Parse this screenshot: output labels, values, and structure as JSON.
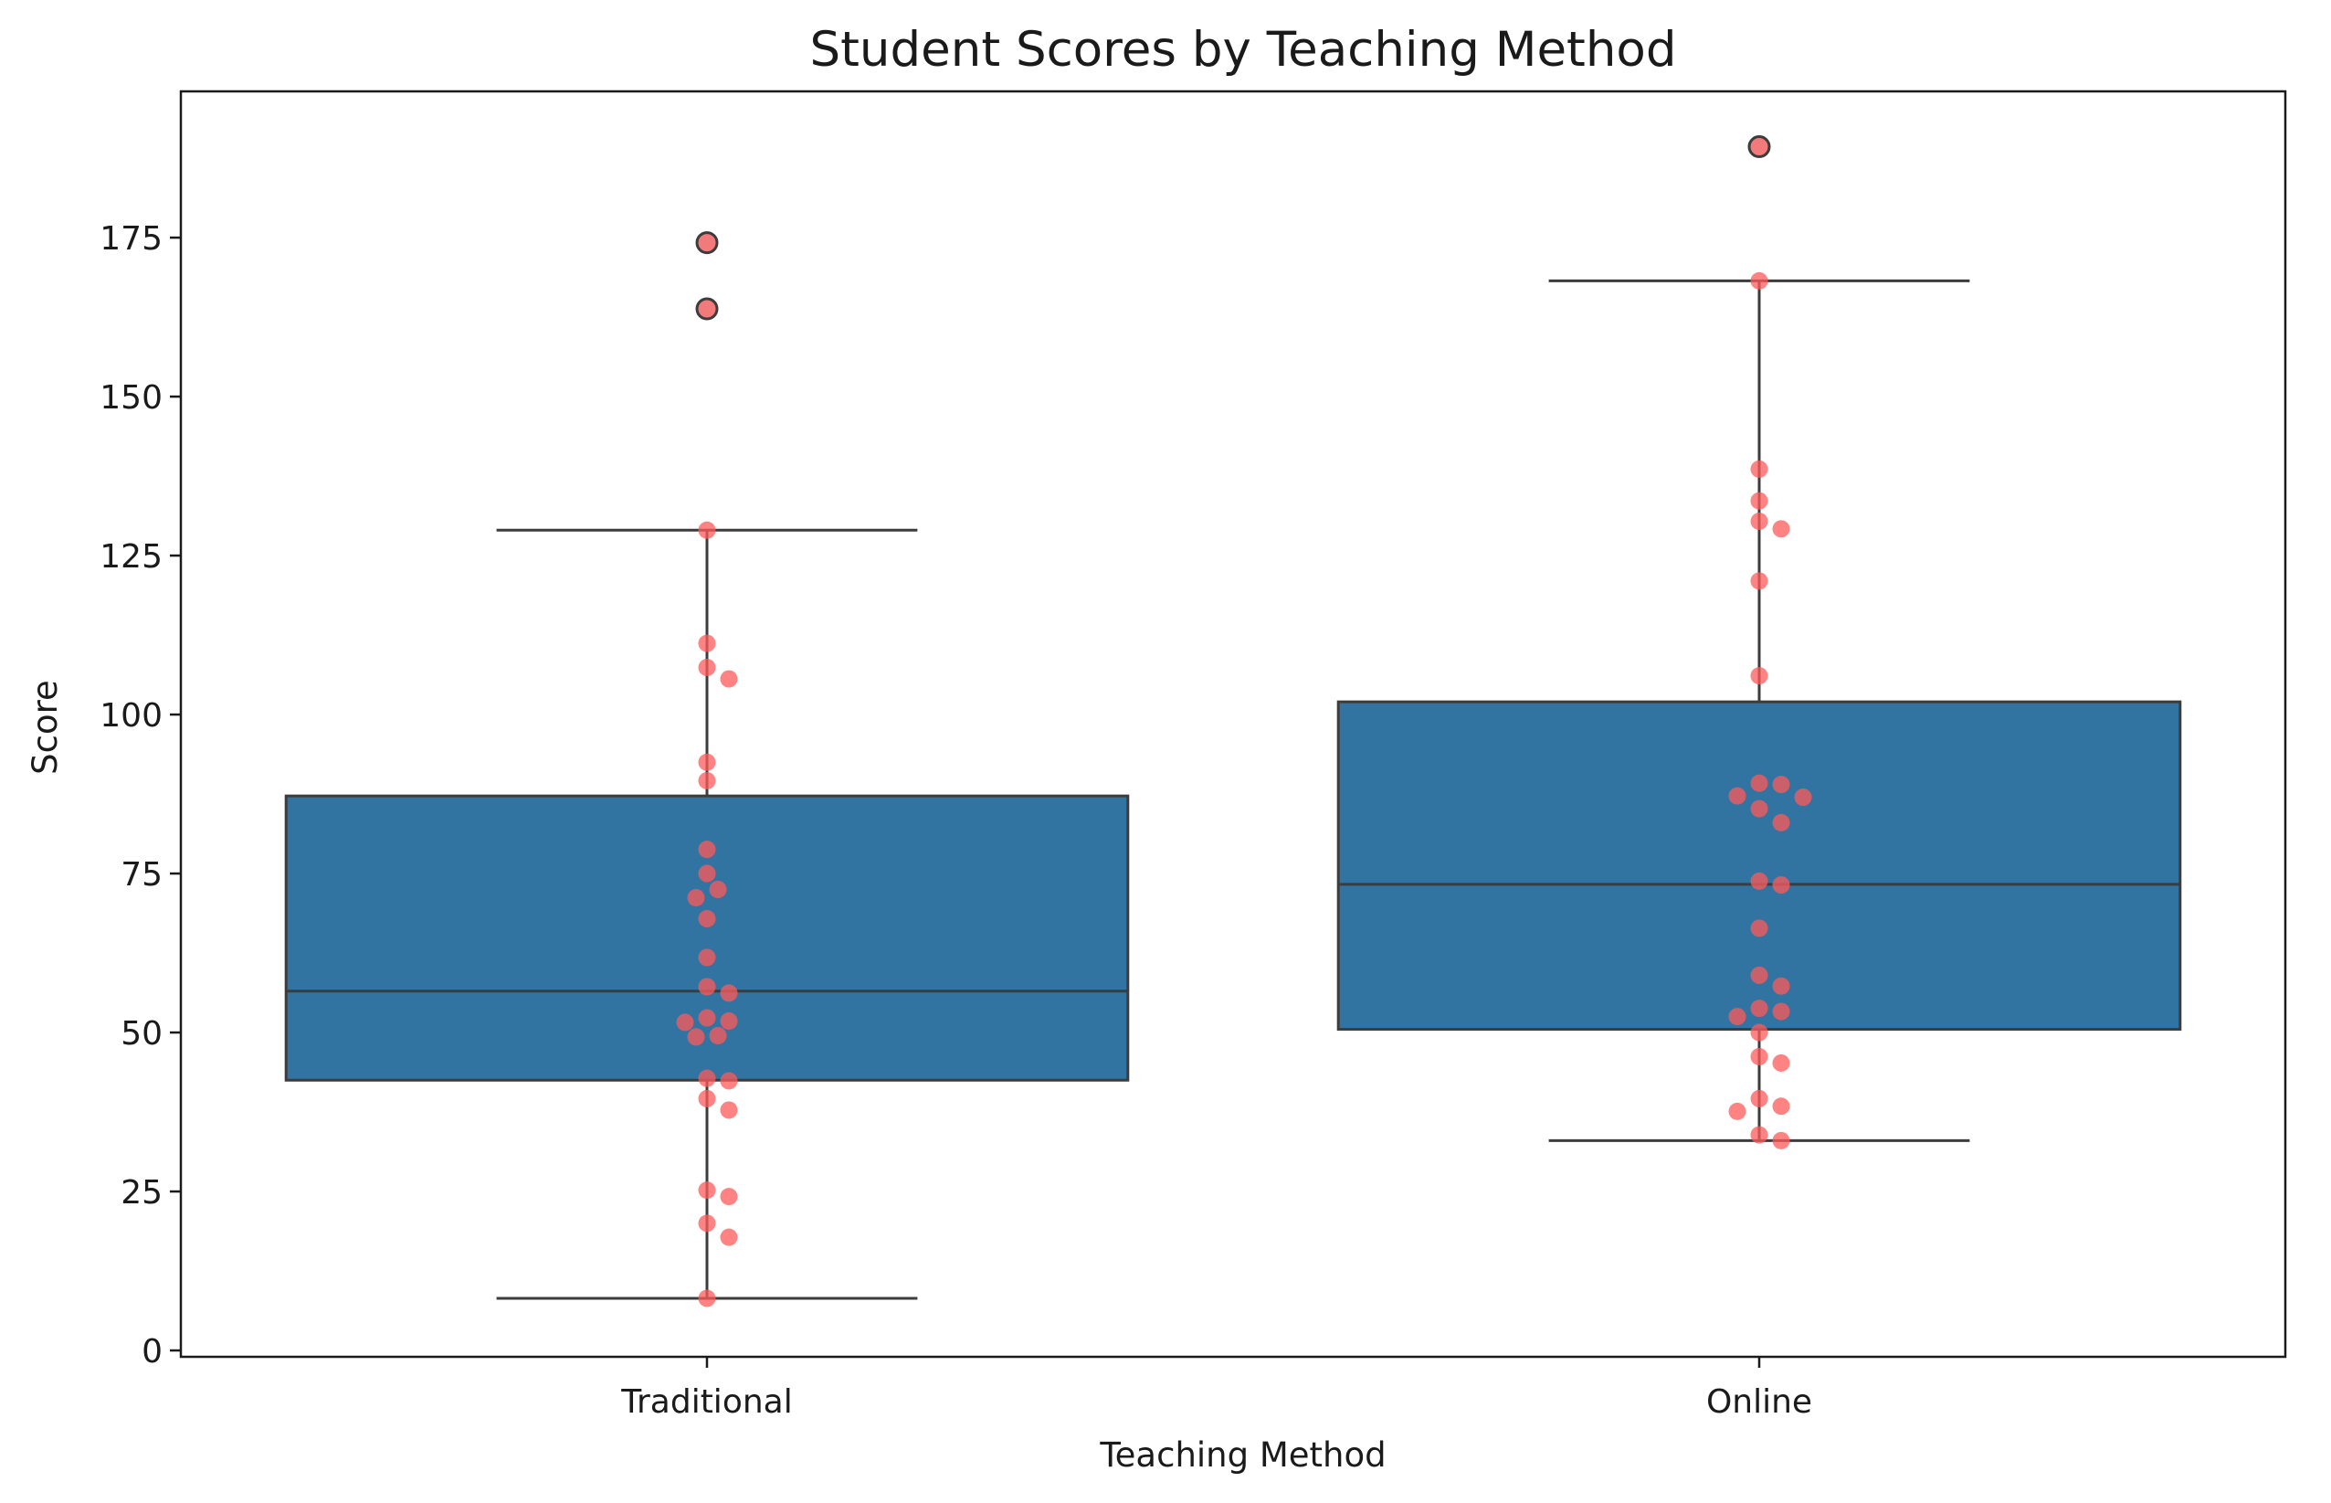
{
  "chart_data": {
    "type": "box",
    "title": "Student Scores by Teaching Method",
    "xlabel": "Teaching Method",
    "ylabel": "Score",
    "ylim": [
      -1,
      198
    ],
    "yticks": [
      0,
      25,
      50,
      75,
      100,
      125,
      150,
      175
    ],
    "categories": [
      "Traditional",
      "Online"
    ],
    "colors": {
      "box": "#3274a1",
      "points": "#ff5a5a",
      "lines": "#3c3c3c"
    },
    "grid": false,
    "groups": [
      {
        "name": "Traditional",
        "q1": 42.5,
        "median": 56.5,
        "q3": 87.2,
        "whisker_low": 8.2,
        "whisker_high": 129.0,
        "outliers": [
          174.2,
          163.8
        ],
        "points": [
          129.0,
          111.2,
          107.4,
          105.6,
          92.5,
          89.6,
          78.8,
          75.0,
          72.5,
          71.2,
          67.9,
          61.8,
          57.2,
          56.2,
          52.3,
          51.8,
          51.6,
          49.5,
          49.3,
          42.8,
          42.4,
          39.6,
          37.8,
          25.2,
          24.2,
          20.0,
          17.8,
          8.2
        ]
      },
      {
        "name": "Online",
        "q1": 50.5,
        "median": 73.3,
        "q3": 102.0,
        "whisker_low": 33.0,
        "whisker_high": 168.2,
        "outliers": [
          189.3
        ],
        "points": [
          168.2,
          138.6,
          133.6,
          130.4,
          129.2,
          121.0,
          106.1,
          89.2,
          89.0,
          87.2,
          87.0,
          85.2,
          83.0,
          73.8,
          73.2,
          66.4,
          59.0,
          57.3,
          53.8,
          53.3,
          52.5,
          50.0,
          46.2,
          45.2,
          39.6,
          38.4,
          37.6,
          33.9,
          33.0
        ]
      }
    ]
  }
}
